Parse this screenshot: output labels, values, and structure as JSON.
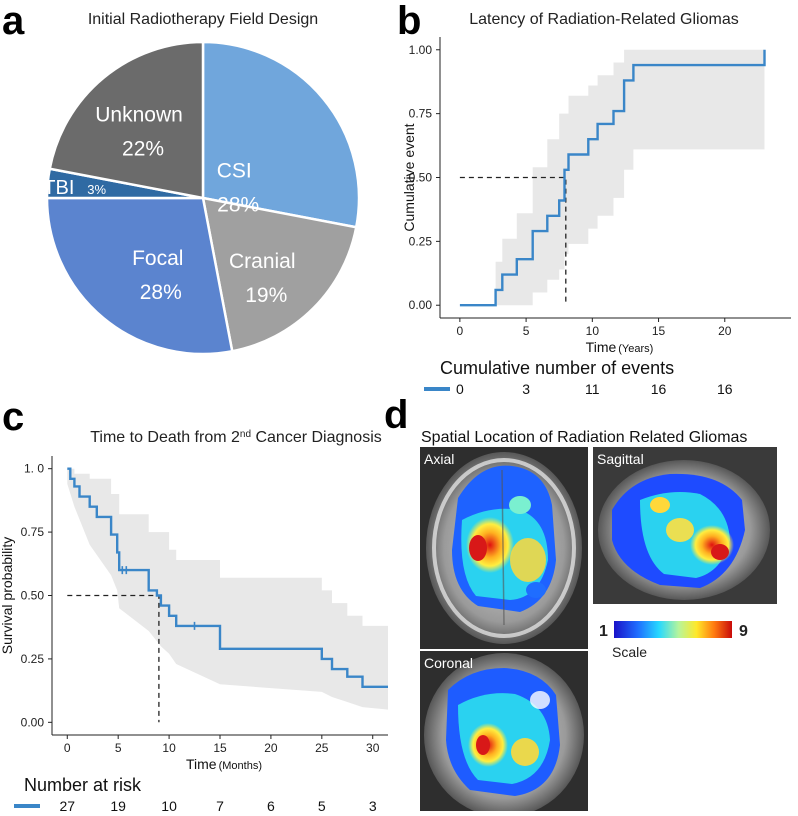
{
  "panel_letters": [
    "a",
    "b",
    "c",
    "d"
  ],
  "colors": {
    "km_line": "#3a86c8",
    "ci_band": "#e8e8e8",
    "csi": "#70a6dc",
    "cranial": "#a0a0a0",
    "focal": "#5b84cf",
    "tbi": "#2f6aa3",
    "unknown": "#6b6b6b",
    "mri_dark": "#3a3a3a"
  },
  "chart_data": [
    {
      "type": "pie",
      "title": "Initial Radiotherapy Field Design",
      "slices": [
        {
          "label": "CSI",
          "pct_label": "28%",
          "value": 28,
          "color": "#70a6dc"
        },
        {
          "label": "Cranial",
          "pct_label": "19%",
          "value": 19,
          "color": "#a0a0a0"
        },
        {
          "label": "Focal",
          "pct_label": "28%",
          "value": 28,
          "color": "#5b84cf"
        },
        {
          "label": "TBI",
          "pct_label": "3%",
          "value": 3,
          "color": "#2f6aa3"
        },
        {
          "label": "Unknown",
          "pct_label": "22%",
          "value": 22,
          "color": "#6b6b6b"
        }
      ]
    },
    {
      "type": "line",
      "title": "Latency of Radiation-Related Gliomas",
      "xlabel": "Time",
      "xlabel_unit": "(Years)",
      "ylabel": "Cumulative event",
      "xlim": [
        -1.5,
        25
      ],
      "ylim": [
        -0.05,
        1.05
      ],
      "xticks": [
        0,
        5,
        10,
        15,
        20
      ],
      "yticks": [
        0.0,
        0.25,
        0.5,
        0.75,
        1.0
      ],
      "ytick_labels": [
        "0.00",
        "0.25",
        "0.50",
        "0.75",
        "1.00"
      ],
      "grid": false,
      "median": {
        "x": 8,
        "y": 0.5
      },
      "step": [
        [
          0,
          0
        ],
        [
          2.7,
          0
        ],
        [
          2.7,
          0.06
        ],
        [
          3.2,
          0.06
        ],
        [
          3.2,
          0.12
        ],
        [
          4.3,
          0.12
        ],
        [
          4.3,
          0.18
        ],
        [
          5.5,
          0.18
        ],
        [
          5.5,
          0.29
        ],
        [
          6.6,
          0.29
        ],
        [
          6.6,
          0.35
        ],
        [
          7.5,
          0.35
        ],
        [
          7.5,
          0.41
        ],
        [
          7.9,
          0.41
        ],
        [
          7.9,
          0.53
        ],
        [
          8.2,
          0.53
        ],
        [
          8.2,
          0.59
        ],
        [
          9.7,
          0.59
        ],
        [
          9.7,
          0.65
        ],
        [
          10.4,
          0.65
        ],
        [
          10.4,
          0.71
        ],
        [
          11.6,
          0.71
        ],
        [
          11.6,
          0.76
        ],
        [
          12.4,
          0.76
        ],
        [
          12.4,
          0.88
        ],
        [
          13.1,
          0.88
        ],
        [
          13.1,
          0.94
        ],
        [
          23,
          0.94
        ],
        [
          23,
          1.0
        ]
      ],
      "ci_upper": [
        [
          0,
          0
        ],
        [
          2.7,
          0
        ],
        [
          2.7,
          0.17
        ],
        [
          3.2,
          0.17
        ],
        [
          3.2,
          0.26
        ],
        [
          4.3,
          0.26
        ],
        [
          4.3,
          0.36
        ],
        [
          5.5,
          0.36
        ],
        [
          5.5,
          0.54
        ],
        [
          6.6,
          0.54
        ],
        [
          6.6,
          0.65
        ],
        [
          7.5,
          0.65
        ],
        [
          7.5,
          0.75
        ],
        [
          8.2,
          0.75
        ],
        [
          8.2,
          0.82
        ],
        [
          9.7,
          0.82
        ],
        [
          9.7,
          0.86
        ],
        [
          10.4,
          0.86
        ],
        [
          10.4,
          0.9
        ],
        [
          11.6,
          0.9
        ],
        [
          11.6,
          0.95
        ],
        [
          12.4,
          0.95
        ],
        [
          12.4,
          1.0
        ],
        [
          23,
          1.0
        ]
      ],
      "ci_lower": [
        [
          0,
          0
        ],
        [
          5.5,
          0
        ],
        [
          5.5,
          0.05
        ],
        [
          6.6,
          0.05
        ],
        [
          6.6,
          0.1
        ],
        [
          7.5,
          0.1
        ],
        [
          7.5,
          0.14
        ],
        [
          7.9,
          0.14
        ],
        [
          7.9,
          0.2
        ],
        [
          8.2,
          0.2
        ],
        [
          8.2,
          0.24
        ],
        [
          9.7,
          0.24
        ],
        [
          9.7,
          0.3
        ],
        [
          10.4,
          0.3
        ],
        [
          10.4,
          0.35
        ],
        [
          11.6,
          0.35
        ],
        [
          11.6,
          0.42
        ],
        [
          12.4,
          0.42
        ],
        [
          12.4,
          0.53
        ],
        [
          13.1,
          0.53
        ],
        [
          13.1,
          0.61
        ],
        [
          23,
          0.61
        ]
      ],
      "table_title": "Cumulative number of events",
      "table_values": [
        "0",
        "3",
        "11",
        "16",
        "16"
      ]
    },
    {
      "type": "line",
      "title_main": "Time to Death from 2",
      "title_sup": "nd",
      "title_end": " Cancer Diagnosis",
      "xlabel": "Time",
      "xlabel_unit": "(Months)",
      "ylabel": "Survival probability",
      "xlim": [
        -1.5,
        31.5
      ],
      "ylim": [
        -0.05,
        1.05
      ],
      "xticks": [
        0,
        5,
        10,
        15,
        20,
        25,
        30
      ],
      "yticks": [
        0.0,
        0.25,
        0.5,
        0.75,
        1.0
      ],
      "ytick_labels": [
        "0.00",
        "0.25",
        "0.50",
        "0.75",
        "1. 0"
      ],
      "grid": false,
      "median": {
        "x": 9,
        "y": 0.5
      },
      "step": [
        [
          0,
          1
        ],
        [
          0.3,
          1
        ],
        [
          0.3,
          0.96
        ],
        [
          0.7,
          0.96
        ],
        [
          0.7,
          0.93
        ],
        [
          1.2,
          0.93
        ],
        [
          1.2,
          0.89
        ],
        [
          2.2,
          0.89
        ],
        [
          2.2,
          0.85
        ],
        [
          2.9,
          0.85
        ],
        [
          2.9,
          0.81
        ],
        [
          4.3,
          0.81
        ],
        [
          4.3,
          0.74
        ],
        [
          4.9,
          0.74
        ],
        [
          4.9,
          0.67
        ],
        [
          5.1,
          0.67
        ],
        [
          5.1,
          0.6
        ],
        [
          8.0,
          0.6
        ],
        [
          8.0,
          0.52
        ],
        [
          8.8,
          0.52
        ],
        [
          8.8,
          0.5
        ],
        [
          9.2,
          0.5
        ],
        [
          9.2,
          0.46
        ],
        [
          10.0,
          0.46
        ],
        [
          10.0,
          0.42
        ],
        [
          10.7,
          0.42
        ],
        [
          10.7,
          0.38
        ],
        [
          15.0,
          0.38
        ],
        [
          15.0,
          0.29
        ],
        [
          25.0,
          0.29
        ],
        [
          25.0,
          0.25
        ],
        [
          26.0,
          0.25
        ],
        [
          26.0,
          0.21
        ],
        [
          27.5,
          0.21
        ],
        [
          27.5,
          0.18
        ],
        [
          29.0,
          0.18
        ],
        [
          29.0,
          0.14
        ],
        [
          31.5,
          0.14
        ]
      ],
      "censor": [
        [
          5.4,
          0.6
        ],
        [
          5.8,
          0.6
        ],
        [
          12.5,
          0.38
        ]
      ],
      "ci_upper": [
        [
          0,
          1
        ],
        [
          0.7,
          1
        ],
        [
          0.7,
          0.98
        ],
        [
          2.2,
          0.98
        ],
        [
          2.2,
          0.96
        ],
        [
          4.3,
          0.96
        ],
        [
          4.3,
          0.9
        ],
        [
          5.1,
          0.9
        ],
        [
          5.1,
          0.82
        ],
        [
          8.0,
          0.82
        ],
        [
          8.0,
          0.75
        ],
        [
          10.0,
          0.75
        ],
        [
          10.0,
          0.68
        ],
        [
          10.7,
          0.68
        ],
        [
          10.7,
          0.64
        ],
        [
          15.0,
          0.64
        ],
        [
          15.0,
          0.57
        ],
        [
          25.0,
          0.57
        ],
        [
          25.0,
          0.52
        ],
        [
          26.0,
          0.52
        ],
        [
          26.0,
          0.47
        ],
        [
          27.5,
          0.47
        ],
        [
          27.5,
          0.42
        ],
        [
          29.0,
          0.42
        ],
        [
          29.0,
          0.38
        ],
        [
          31.5,
          0.38
        ]
      ],
      "ci_lower": [
        [
          0,
          0.94
        ],
        [
          0.7,
          0.85
        ],
        [
          1.2,
          0.8
        ],
        [
          2.2,
          0.7
        ],
        [
          2.9,
          0.66
        ],
        [
          4.3,
          0.58
        ],
        [
          4.9,
          0.52
        ],
        [
          5.1,
          0.45
        ],
        [
          8.0,
          0.36
        ],
        [
          8.8,
          0.32
        ],
        [
          9.2,
          0.3
        ],
        [
          10.0,
          0.27
        ],
        [
          10.7,
          0.23
        ],
        [
          15.0,
          0.15
        ],
        [
          25.0,
          0.12
        ],
        [
          26.0,
          0.1
        ],
        [
          27.5,
          0.08
        ],
        [
          29.0,
          0.06
        ],
        [
          31.5,
          0.05
        ]
      ],
      "table_title": "Number at risk",
      "table_values": [
        "27",
        "19",
        "10",
        "7",
        "6",
        "5",
        "3"
      ]
    }
  ],
  "panel_d": {
    "title": "Spatial Location of Radiation Related Gliomas",
    "views": [
      {
        "label": "Axial"
      },
      {
        "label": "Sagittal"
      },
      {
        "label": "Coronal"
      }
    ],
    "scale": {
      "min_label": "1",
      "max_label": "9",
      "caption": "Scale"
    }
  }
}
